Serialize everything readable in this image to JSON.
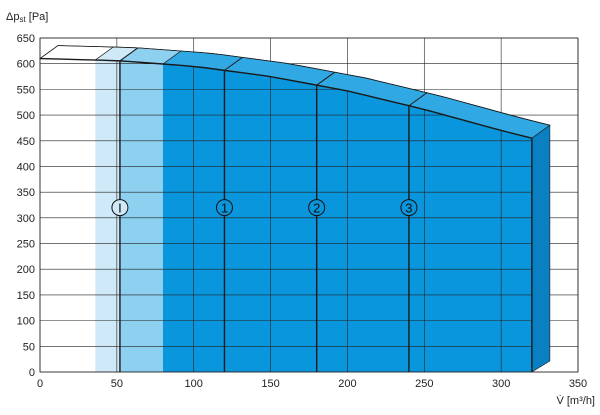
{
  "chart_data": {
    "type": "area",
    "ylabel": "Δp",
    "ylabel_sub": "st",
    "ylabel_unit": " [Pa]",
    "xlabel": "V̇ [m³/h]",
    "xlim": [
      0,
      350
    ],
    "ylim": [
      0,
      650
    ],
    "x_ticks": [
      0,
      50,
      100,
      150,
      200,
      250,
      300,
      350
    ],
    "y_ticks": [
      0,
      50,
      100,
      150,
      200,
      250,
      300,
      350,
      400,
      450,
      500,
      550,
      600,
      650
    ],
    "grid": true,
    "max_curve": {
      "x": [
        0,
        50,
        100,
        150,
        200,
        250,
        300,
        320
      ],
      "y": [
        610,
        606,
        595,
        575,
        547,
        511,
        470,
        455
      ]
    },
    "regions": [
      {
        "from": 0,
        "to": 36,
        "color": "#ffffff"
      },
      {
        "from": 36,
        "to": 52,
        "color": "#cfe9f8"
      },
      {
        "from": 52,
        "to": 80,
        "color": "#8ed0f0"
      },
      {
        "from": 80,
        "to": 320,
        "color": "#0a96dc"
      }
    ],
    "markers": [
      {
        "label": "I",
        "x": 52,
        "y": 320,
        "color": "#cfe9f8"
      },
      {
        "label": "1",
        "x": 120,
        "y": 320,
        "color": "#0a96dc"
      },
      {
        "label": "2",
        "x": 180,
        "y": 320,
        "color": "#0a96dc"
      },
      {
        "label": "3",
        "x": 240,
        "y": 320,
        "color": "#0a96dc"
      }
    ],
    "colors": {
      "front_dark": "#0a96dc",
      "top_face": "#2fa8e4",
      "side_face": "#0a7fc2",
      "outline": "#1a1a1a"
    }
  }
}
